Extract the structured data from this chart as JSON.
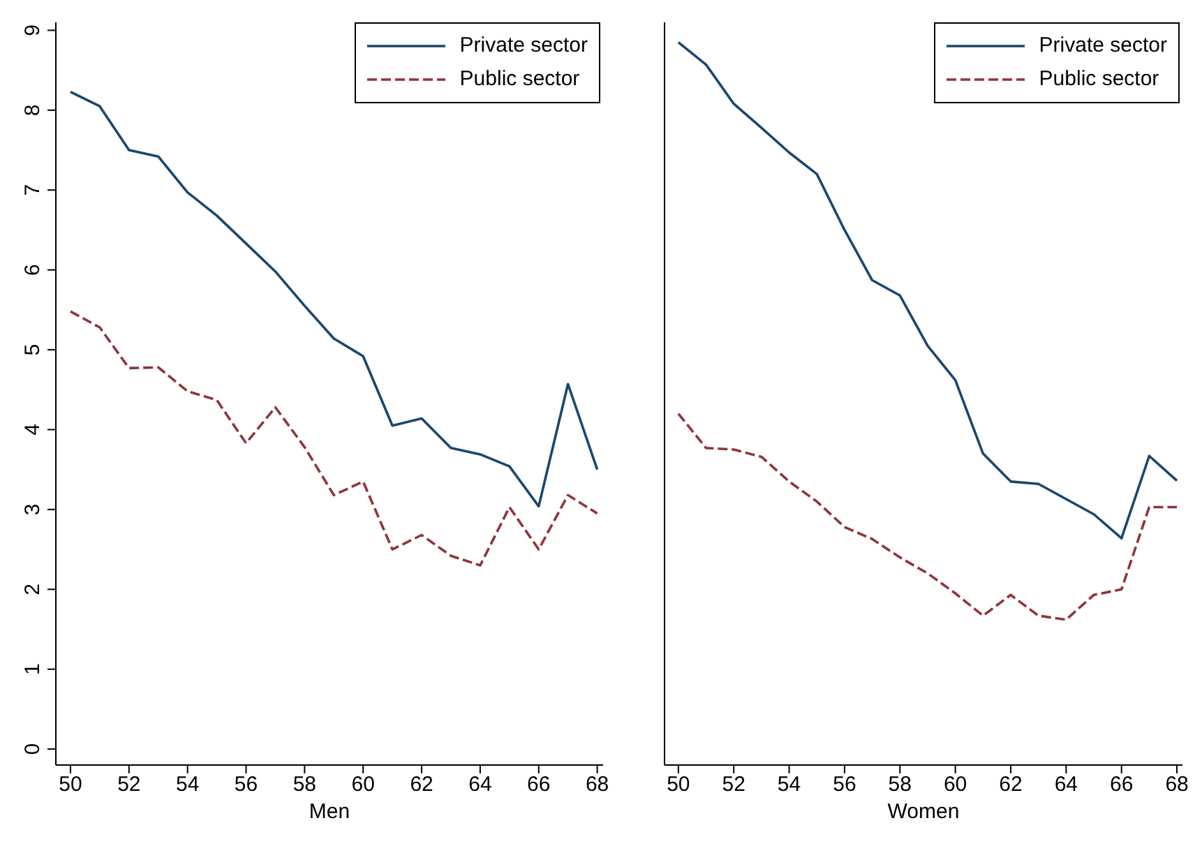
{
  "chart_data": [
    {
      "type": "line",
      "xlabel": "Men",
      "x": [
        50,
        51,
        52,
        53,
        54,
        55,
        56,
        57,
        58,
        59,
        60,
        61,
        62,
        63,
        64,
        65,
        66,
        67,
        68
      ],
      "xlim": [
        49.5,
        68.2
      ],
      "xticks": [
        50,
        52,
        54,
        56,
        58,
        60,
        62,
        64,
        66,
        68
      ],
      "ylim": [
        -0.2,
        9.1
      ],
      "yticks": [
        0,
        1,
        2,
        3,
        4,
        5,
        6,
        7,
        8,
        9
      ],
      "legend": "top right",
      "marker": "none",
      "series": [
        {
          "name": "Private sector",
          "color": "#1a476f",
          "line_style": "solid",
          "values": [
            8.23,
            8.05,
            7.5,
            7.42,
            6.97,
            6.68,
            6.33,
            5.98,
            5.55,
            5.14,
            4.92,
            4.05,
            4.14,
            3.77,
            3.69,
            3.54,
            3.04,
            4.57,
            3.5
          ]
        },
        {
          "name": "Public sector",
          "color": "#90353b",
          "line_style": "dashed",
          "values": [
            5.48,
            5.28,
            4.77,
            4.78,
            4.48,
            4.37,
            3.83,
            4.28,
            3.78,
            3.18,
            3.35,
            2.5,
            2.68,
            2.42,
            2.3,
            3.03,
            2.5,
            3.18,
            2.95
          ]
        }
      ]
    },
    {
      "type": "line",
      "xlabel": "Women",
      "x": [
        50,
        51,
        52,
        53,
        54,
        55,
        56,
        57,
        58,
        59,
        60,
        61,
        62,
        63,
        64,
        65,
        66,
        67,
        68
      ],
      "xlim": [
        49.5,
        68.2
      ],
      "xticks": [
        50,
        52,
        54,
        56,
        58,
        60,
        62,
        64,
        66,
        68
      ],
      "ylim": [
        -0.2,
        9.1
      ],
      "yticks": [
        0,
        1,
        2,
        3,
        4,
        5,
        6,
        7,
        8,
        9
      ],
      "tick_labels": "x",
      "legend": "top right",
      "marker": "none",
      "series": [
        {
          "name": "Private sector",
          "color": "#1a476f",
          "line_style": "solid",
          "values": [
            8.85,
            8.57,
            8.08,
            7.78,
            7.47,
            7.2,
            6.5,
            5.87,
            5.68,
            5.05,
            4.62,
            3.7,
            3.35,
            3.32,
            3.13,
            2.94,
            2.64,
            3.67,
            3.36
          ]
        },
        {
          "name": "Public sector",
          "color": "#90353b",
          "line_style": "dashed",
          "values": [
            4.2,
            3.77,
            3.75,
            3.66,
            3.35,
            3.1,
            2.78,
            2.63,
            2.4,
            2.2,
            1.95,
            1.67,
            1.93,
            1.67,
            1.62,
            1.93,
            2.0,
            3.03,
            3.03
          ]
        }
      ]
    }
  ]
}
